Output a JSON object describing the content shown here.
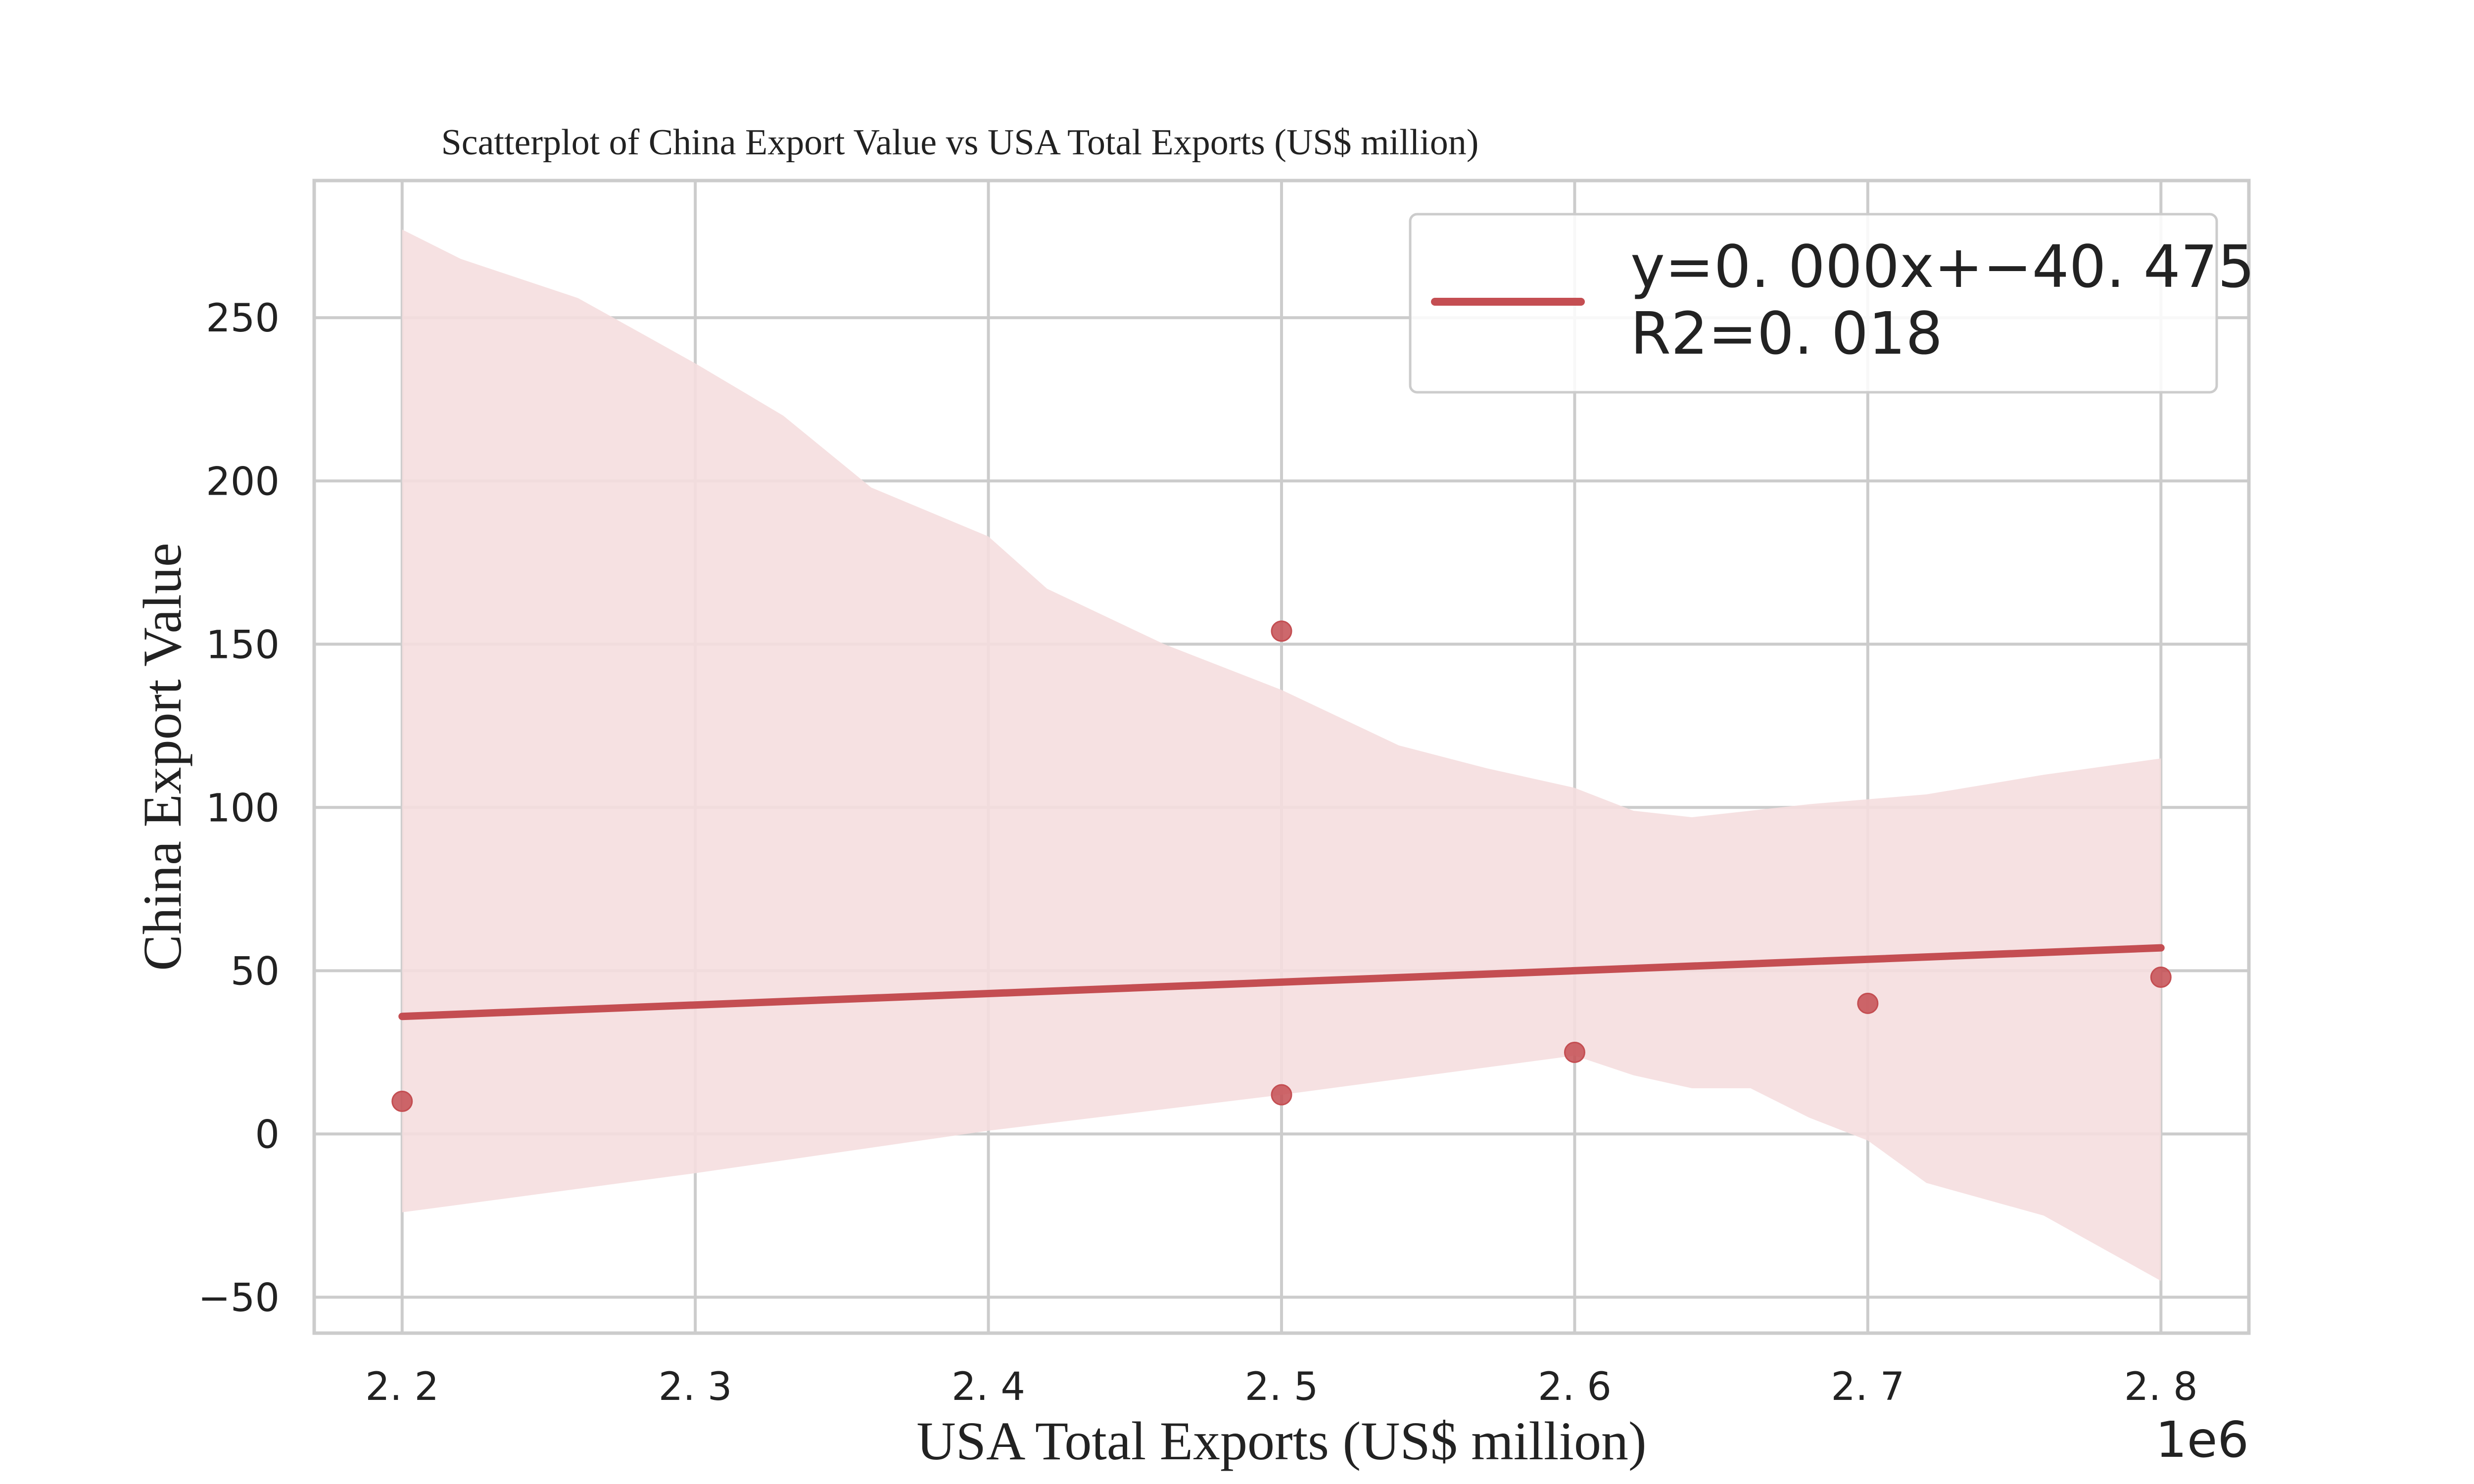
{
  "chart_data": {
    "type": "scatter",
    "title": "Scatterplot of China Export Value vs USA Total Exports (US$ million)",
    "xlabel": "USA Total Exports (US$ million)",
    "ylabel": "China Export Value",
    "x_offset_label": "1e6",
    "xlim": [
      2.17,
      2.83
    ],
    "ylim": [
      -61,
      292
    ],
    "x_ticks": [
      2.2,
      2.3,
      2.4,
      2.5,
      2.6,
      2.7,
      2.8
    ],
    "x_tick_labels": [
      "2. 2",
      "2. 3",
      "2. 4",
      "2. 5",
      "2. 6",
      "2. 7",
      "2. 8"
    ],
    "y_ticks": [
      -50,
      0,
      50,
      100,
      150,
      200,
      250
    ],
    "y_tick_labels": [
      "−50",
      "0",
      "50",
      "100",
      "150",
      "200",
      "250"
    ],
    "grid": true,
    "points": [
      {
        "x": 2.2,
        "y": 10
      },
      {
        "x": 2.5,
        "y": 154
      },
      {
        "x": 2.5,
        "y": 12
      },
      {
        "x": 2.6,
        "y": 25
      },
      {
        "x": 2.7,
        "y": 40
      },
      {
        "x": 2.8,
        "y": 48
      }
    ],
    "regression_line": {
      "x": [
        2.2,
        2.8
      ],
      "y": [
        36,
        57
      ]
    },
    "confidence_band": {
      "upper": [
        [
          2.2,
          277
        ],
        [
          2.22,
          268
        ],
        [
          2.26,
          256
        ],
        [
          2.3,
          236
        ],
        [
          2.33,
          220
        ],
        [
          2.36,
          198
        ],
        [
          2.4,
          183
        ],
        [
          2.42,
          167
        ],
        [
          2.46,
          150
        ],
        [
          2.5,
          136
        ],
        [
          2.54,
          119
        ],
        [
          2.57,
          112
        ],
        [
          2.6,
          106
        ],
        [
          2.62,
          99
        ],
        [
          2.64,
          97
        ],
        [
          2.68,
          101
        ],
        [
          2.72,
          104
        ],
        [
          2.76,
          110
        ],
        [
          2.8,
          115
        ]
      ],
      "lower": [
        [
          2.2,
          -24
        ],
        [
          2.3,
          -12
        ],
        [
          2.4,
          1
        ],
        [
          2.5,
          12
        ],
        [
          2.6,
          24
        ],
        [
          2.62,
          18
        ],
        [
          2.64,
          14
        ],
        [
          2.66,
          14
        ],
        [
          2.68,
          5
        ],
        [
          2.7,
          -2
        ],
        [
          2.72,
          -15
        ],
        [
          2.76,
          -25
        ],
        [
          2.8,
          -45
        ]
      ]
    },
    "legend": {
      "position": "top-right",
      "lines": [
        "y=0. 000x+−40. 475",
        "R2=0. 018"
      ]
    },
    "colors": {
      "series": "#c44e52",
      "band": "#f5dedf",
      "grid": "#cccccc"
    }
  }
}
